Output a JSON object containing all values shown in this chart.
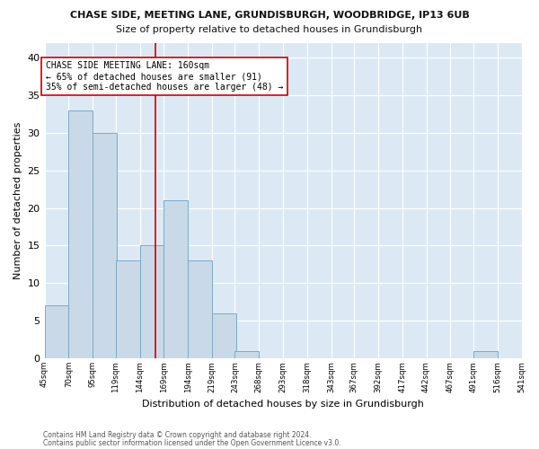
{
  "title1": "CHASE SIDE, MEETING LANE, GRUNDISBURGH, WOODBRIDGE, IP13 6UB",
  "title2": "Size of property relative to detached houses in Grundisburgh",
  "xlabel": "Distribution of detached houses by size in Grundisburgh",
  "ylabel": "Number of detached properties",
  "bar_color": "#c9d9e8",
  "bar_edge_color": "#7aaac8",
  "bins": [
    45,
    70,
    95,
    119,
    144,
    169,
    194,
    219,
    243,
    268,
    293,
    318,
    343,
    367,
    392,
    417,
    442,
    467,
    491,
    516,
    541
  ],
  "counts": [
    7,
    33,
    30,
    13,
    15,
    21,
    13,
    6,
    1,
    0,
    0,
    0,
    0,
    0,
    0,
    0,
    0,
    0,
    1,
    0
  ],
  "tick_labels": [
    "45sqm",
    "70sqm",
    "95sqm",
    "119sqm",
    "144sqm",
    "169sqm",
    "194sqm",
    "219sqm",
    "243sqm",
    "268sqm",
    "293sqm",
    "318sqm",
    "343sqm",
    "367sqm",
    "392sqm",
    "417sqm",
    "442sqm",
    "467sqm",
    "491sqm",
    "516sqm",
    "541sqm"
  ],
  "vline_x": 160,
  "vline_color": "#cc0000",
  "annotation_text": "CHASE SIDE MEETING LANE: 160sqm\n← 65% of detached houses are smaller (91)\n35% of semi-detached houses are larger (48) →",
  "annotation_box_color": "#ffffff",
  "annotation_box_edge_color": "#cc0000",
  "ylim": [
    0,
    42
  ],
  "yticks": [
    0,
    5,
    10,
    15,
    20,
    25,
    30,
    35,
    40
  ],
  "background_color": "#dce9f5",
  "fig_background_color": "#ffffff",
  "footer1": "Contains HM Land Registry data © Crown copyright and database right 2024.",
  "footer2": "Contains public sector information licensed under the Open Government Licence v3.0."
}
